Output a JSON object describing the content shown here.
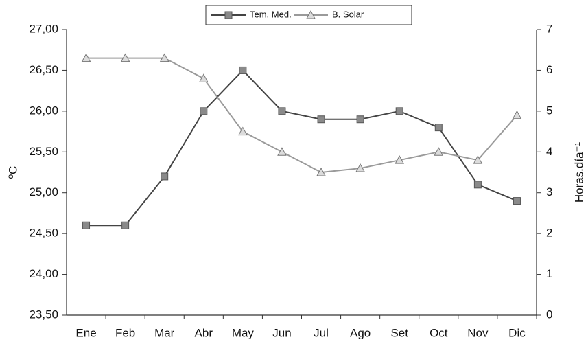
{
  "chart_data": {
    "type": "line",
    "ylabel": "ºC",
    "y2label": "Horas.día⁻¹",
    "categories": [
      "Ene",
      "Feb",
      "Mar",
      "Abr",
      "May",
      "Jun",
      "Jul",
      "Ago",
      "Set",
      "Oct",
      "Nov",
      "Dic"
    ],
    "series": [
      {
        "name": "Tem. Med.",
        "color": "#444444",
        "marker": "square",
        "marker_color": "#8a8a8a",
        "values": [
          24.6,
          24.6,
          25.2,
          26.0,
          26.5,
          26.0,
          25.9,
          25.9,
          26.0,
          25.8,
          25.1,
          24.9
        ]
      },
      {
        "name": "B. Solar",
        "color": "#9a9a9a",
        "marker": "triangle",
        "marker_color": "#dcdcdc",
        "axis": "y2",
        "values": [
          6.3,
          6.3,
          6.3,
          5.8,
          4.5,
          4.0,
          3.5,
          3.6,
          3.8,
          4.0,
          3.8,
          4.9
        ]
      }
    ],
    "ylim": [
      23.5,
      27.0
    ],
    "yticks": [
      {
        "value": 23.5,
        "label": "23,50"
      },
      {
        "value": 24.0,
        "label": "24,00"
      },
      {
        "value": 24.5,
        "label": "24,50"
      },
      {
        "value": 25.0,
        "label": "25,00"
      },
      {
        "value": 25.5,
        "label": "25,50"
      },
      {
        "value": 26.0,
        "label": "26,00"
      },
      {
        "value": 26.5,
        "label": "26,50"
      },
      {
        "value": 27.0,
        "label": "27,00"
      }
    ],
    "y2lim": [
      0,
      7
    ],
    "y2ticks": [
      0,
      1,
      2,
      3,
      4,
      5,
      6,
      7
    ],
    "grid": false,
    "legend": "top"
  }
}
